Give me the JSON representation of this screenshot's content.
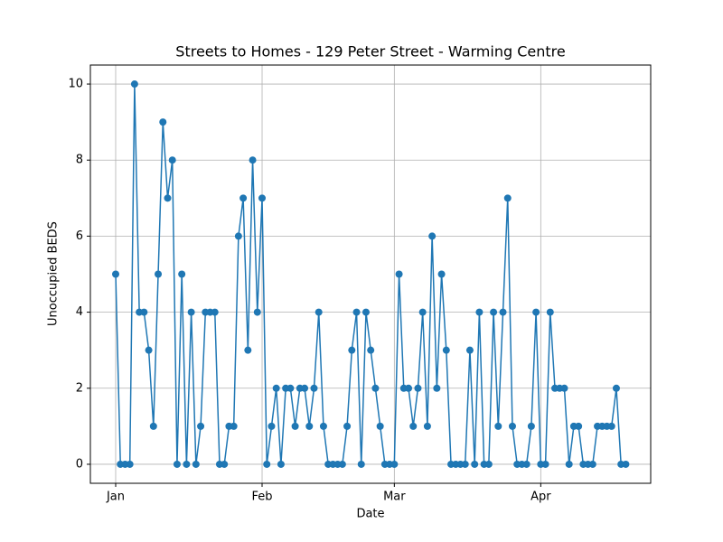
{
  "chart_data": {
    "type": "line",
    "title": "Streets to Homes - 129 Peter Street - Warming Centre",
    "x_label": "Date",
    "y_label": "Unoccupied BEDS",
    "categories": [
      "Jan",
      null,
      null,
      null,
      null,
      null,
      null,
      null,
      null,
      null,
      null,
      null,
      null,
      null,
      null,
      null,
      null,
      null,
      null,
      null,
      null,
      null,
      null,
      null,
      null,
      null,
      null,
      null,
      null,
      null,
      null,
      "Feb",
      null,
      null,
      null,
      null,
      null,
      null,
      null,
      null,
      null,
      null,
      null,
      null,
      null,
      null,
      null,
      null,
      null,
      null,
      null,
      null,
      null,
      null,
      null,
      null,
      null,
      null,
      null,
      "Mar",
      null,
      null,
      null,
      null,
      null,
      null,
      null,
      null,
      null,
      null,
      null,
      null,
      null,
      null,
      null,
      null,
      null,
      null,
      null,
      null,
      null,
      null,
      null,
      null,
      null,
      null,
      null,
      null,
      null,
      null,
      "Apr",
      null,
      null,
      null,
      null,
      null,
      null,
      null,
      null,
      null,
      null,
      null,
      null,
      null,
      null,
      null,
      null,
      null,
      null
    ],
    "values": [
      5,
      0,
      0,
      0,
      10,
      4,
      4,
      3,
      1,
      5,
      9,
      7,
      8,
      0,
      5,
      0,
      4,
      0,
      1,
      4,
      4,
      4,
      0,
      0,
      1,
      1,
      6,
      7,
      3,
      8,
      4,
      7,
      0,
      1,
      2,
      0,
      2,
      2,
      1,
      2,
      2,
      1,
      2,
      4,
      1,
      0,
      0,
      0,
      0,
      1,
      3,
      4,
      0,
      4,
      3,
      2,
      1,
      0,
      0,
      0,
      5,
      2,
      2,
      1,
      2,
      4,
      1,
      6,
      2,
      5,
      3,
      0,
      0,
      0,
      0,
      3,
      0,
      4,
      0,
      0,
      4,
      1,
      4,
      7,
      1,
      0,
      0,
      0,
      1,
      4,
      0,
      0,
      4,
      2,
      2,
      2,
      0,
      1,
      1,
      0,
      0,
      0,
      1,
      1,
      1,
      1,
      2,
      0,
      0
    ],
    "color": "#1f77b4",
    "ylim": [
      -0.5,
      10.5
    ],
    "yticks": [
      0,
      2,
      4,
      6,
      8,
      10
    ],
    "grid": true,
    "markers": true
  }
}
